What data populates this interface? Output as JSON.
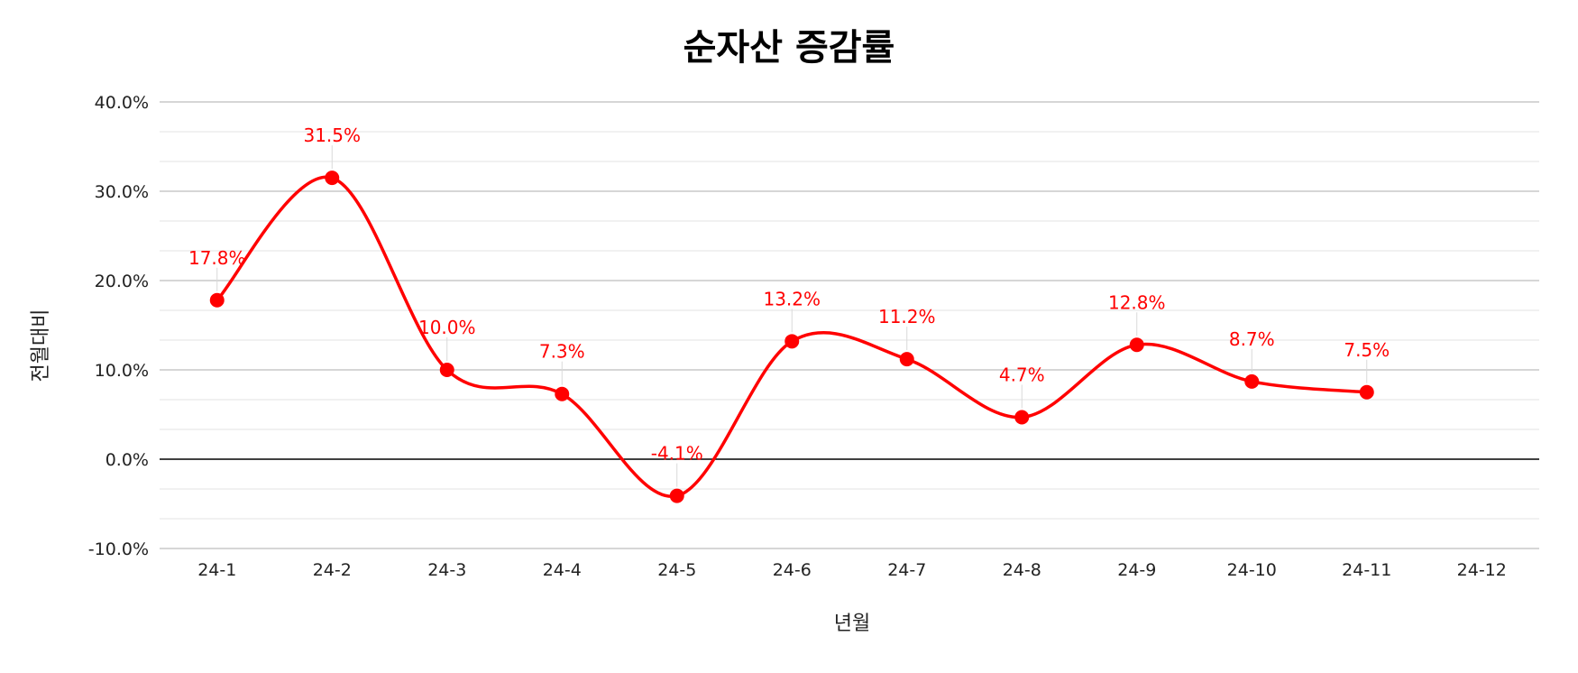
{
  "chart_data": {
    "type": "line",
    "title": "순자산 증감률",
    "xlabel": "년월",
    "ylabel": "전월대비",
    "categories": [
      "24-1",
      "24-2",
      "24-3",
      "24-4",
      "24-5",
      "24-6",
      "24-7",
      "24-8",
      "24-9",
      "24-10",
      "24-11",
      "24-12"
    ],
    "series": [
      {
        "values": [
          17.8,
          31.5,
          10.0,
          7.3,
          -4.1,
          13.2,
          11.2,
          4.7,
          12.8,
          8.7,
          7.5,
          null
        ],
        "labels": [
          "17.8%",
          "31.5%",
          "10.0%",
          "7.3%",
          "-4.1%",
          "13.2%",
          "11.2%",
          "4.7%",
          "12.8%",
          "8.7%",
          "7.5%",
          ""
        ],
        "color": "#ff0000"
      }
    ],
    "ylim": [
      -10,
      40
    ],
    "yticks": [
      -10,
      0,
      10,
      20,
      30,
      40
    ],
    "ytick_labels": [
      "-10.0%",
      "0.0%",
      "10.0%",
      "20.0%",
      "30.0%",
      "40.0%"
    ],
    "smooth": true,
    "grid": true,
    "legend": "none"
  }
}
